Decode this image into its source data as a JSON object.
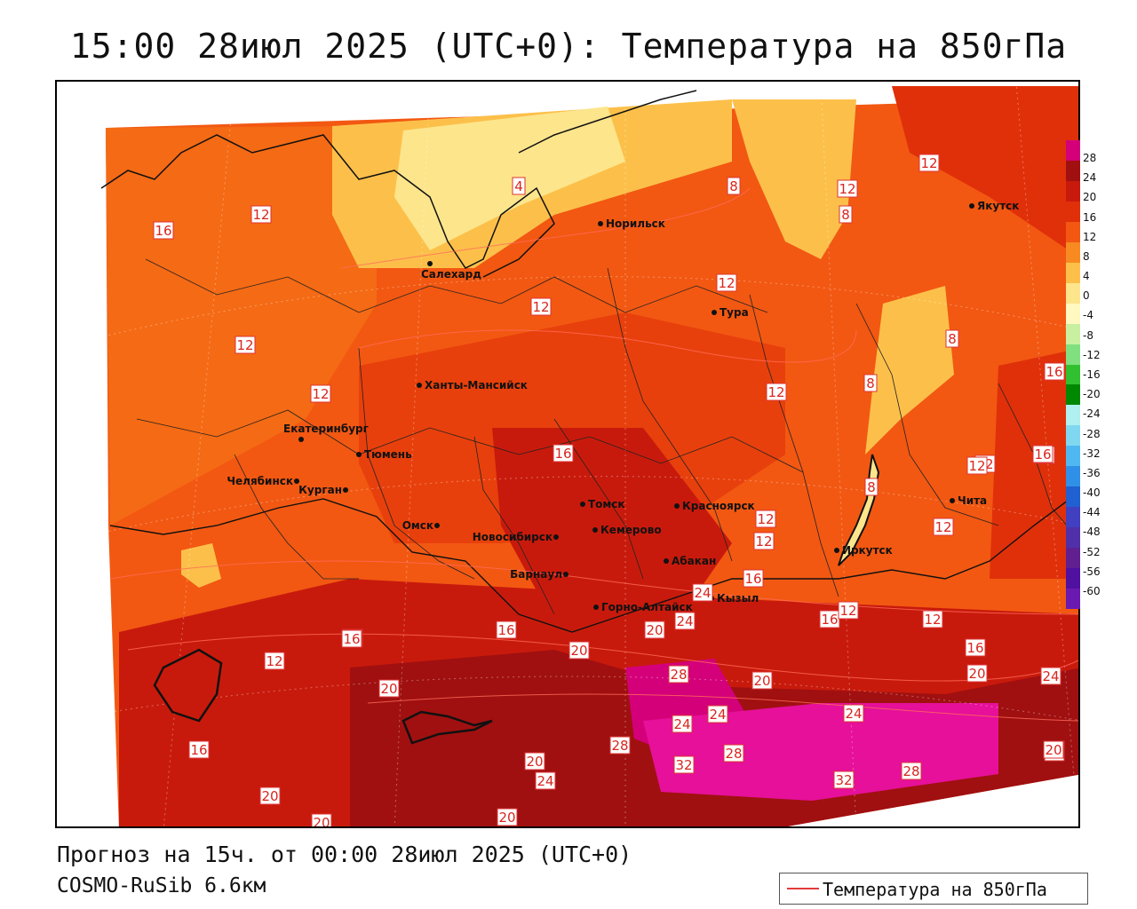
{
  "title": "15:00 28июл 2025 (UTC+0): Температура на 850гПа",
  "footer": {
    "forecast": "Прогноз на 15ч. от 00:00 28июл 2025 (UTC+0)",
    "model": "COSMO-RuSib 6.6км"
  },
  "legend": {
    "line_label": "Температура на 850гПа",
    "line_color": "#e23b3b"
  },
  "colorbar": {
    "labels": [
      "28",
      "24",
      "20",
      "16",
      "12",
      "8",
      "4",
      "0",
      "-4",
      "-8",
      "-12",
      "-16",
      "-20",
      "-24",
      "-28",
      "-32",
      "-36",
      "-40",
      "-44",
      "-48",
      "-52",
      "-56",
      "-60"
    ],
    "colors": [
      "#d4007a",
      "#a01010",
      "#c81a0c",
      "#e0300a",
      "#f25812",
      "#f88a22",
      "#fcc04a",
      "#fde58c",
      "#fff8c0",
      "#c8f0a0",
      "#80e080",
      "#30c030",
      "#008800",
      "#b0f0f0",
      "#80d8f0",
      "#50b8f0",
      "#3090e8",
      "#2060d0",
      "#4040c0",
      "#5030a8",
      "#602090",
      "#5010a0",
      "#6a1ab0"
    ]
  },
  "cities": [
    {
      "name": "Норильск"
    },
    {
      "name": "Якутск"
    },
    {
      "name": "Салехард"
    },
    {
      "name": "Тура"
    },
    {
      "name": "Ханты-Мансийск"
    },
    {
      "name": "Екатеринбург"
    },
    {
      "name": "Тюмень"
    },
    {
      "name": "Челябинск"
    },
    {
      "name": "Курган"
    },
    {
      "name": "Омск"
    },
    {
      "name": "Новосибирск"
    },
    {
      "name": "Томск"
    },
    {
      "name": "Кемерово"
    },
    {
      "name": "Красноярск"
    },
    {
      "name": "Барнаул"
    },
    {
      "name": "Абакан"
    },
    {
      "name": "Горно-Алтайск"
    },
    {
      "name": "Кызыл"
    },
    {
      "name": "Иркутск"
    },
    {
      "name": "Чита"
    }
  ],
  "contour_labels": [
    "16",
    "12",
    "12",
    "12",
    "12",
    "12",
    "12",
    "12",
    "12",
    "16",
    "16",
    "12",
    "12",
    "12",
    "12",
    "16",
    "16",
    "16",
    "16",
    "12",
    "12",
    "16",
    "12",
    "12",
    "16",
    "16",
    "16",
    "20",
    "20",
    "20",
    "24",
    "24",
    "20",
    "20",
    "28",
    "24",
    "24",
    "24",
    "28",
    "28",
    "32",
    "24",
    "32",
    "28",
    "24",
    "20",
    "20",
    "20",
    "20",
    "16",
    "8",
    "8",
    "8",
    "8",
    "8",
    "12",
    "4",
    "20",
    "16"
  ]
}
